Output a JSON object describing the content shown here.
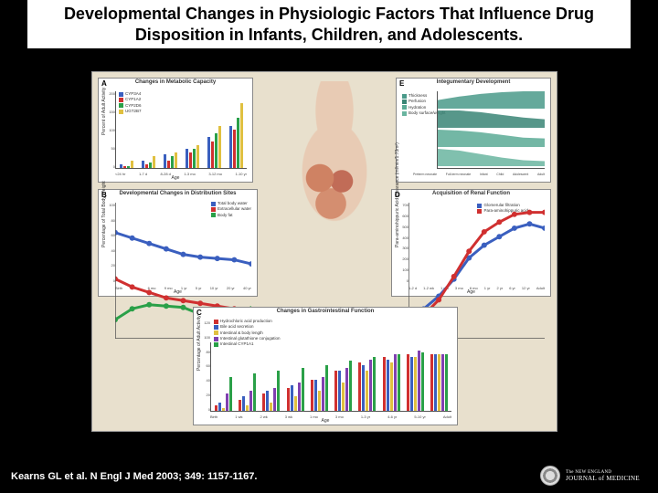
{
  "title": "Developmental Changes in Physiologic Factors That Influence Drug Disposition in Infants, Children, and Adolescents.",
  "citation": "Kearns GL et al. N Engl J Med 2003; 349: 1157-1167.",
  "journal": {
    "line1": "The NEW ENGLAND",
    "line2": "JOURNAL of MEDICINE"
  },
  "figure_bg": "#e8e0cd",
  "panelA": {
    "label": "A",
    "title": "Changes in Metabolic Capacity",
    "ylabel": "Percent of Adult Activity",
    "xlabel": "Age",
    "ylim": [
      0,
      200
    ],
    "ytick_step": 50,
    "xticks": [
      "<24 hr",
      "1-7 d",
      "8-28 d",
      "1-3 mo",
      "3-12 mo",
      "1-10 yr"
    ],
    "series": [
      {
        "name": "CYP3A4",
        "color": "#3a5fbf"
      },
      {
        "name": "CYP1A2",
        "color": "#d03030"
      },
      {
        "name": "CYP2D6",
        "color": "#2aa048"
      },
      {
        "name": "UGT2B7",
        "color": "#e0c040"
      }
    ],
    "data": [
      [
        10,
        5,
        5,
        20
      ],
      [
        20,
        10,
        15,
        30
      ],
      [
        35,
        20,
        30,
        40
      ],
      [
        50,
        40,
        50,
        60
      ],
      [
        80,
        70,
        90,
        110
      ],
      [
        110,
        100,
        130,
        170
      ]
    ]
  },
  "panelB": {
    "label": "B",
    "title": "Developmental Changes in Distribution Sites",
    "ylabel": "Percentage of Total Body Weight",
    "xlabel": "Age",
    "ylim": [
      0,
      100
    ],
    "ytick_step": 20,
    "xticks": [
      "Birth",
      "3 mo",
      "6 mo",
      "9 mo",
      "1 yr",
      "5 yr",
      "10 yr",
      "20 yr",
      "40 yr"
    ],
    "series": [
      {
        "name": "Total body water",
        "color": "#3a5fbf",
        "marker": "square"
      },
      {
        "name": "Extracellular water",
        "color": "#d03030",
        "marker": "circle"
      },
      {
        "name": "Body fat",
        "color": "#2aa048",
        "marker": "triangle"
      }
    ],
    "data": {
      "tbw": [
        78,
        74,
        70,
        66,
        62,
        60,
        59,
        58,
        55
      ],
      "ecw": [
        44,
        38,
        34,
        30,
        28,
        26,
        24,
        22,
        20
      ],
      "fat": [
        14,
        22,
        25,
        24,
        23,
        18,
        16,
        17,
        22
      ]
    }
  },
  "panelC": {
    "label": "C",
    "title": "Changes in Gastrointestinal Function",
    "ylabel": "Percentage of Adult Activity",
    "xlabel": "Age",
    "ylim": [
      0,
      120
    ],
    "ytick_step": 20,
    "xticks": [
      "Birth",
      "1 wk",
      "2 wk",
      "3 wk",
      "1 mo",
      "3 mo",
      "1-3 yr",
      "4-6 yr",
      "5-10 yr",
      "Adult"
    ],
    "series": [
      {
        "name": "Hydrochloric acid production",
        "color": "#d03030"
      },
      {
        "name": "Bile acid secretion",
        "color": "#3a5fbf"
      },
      {
        "name": "Intestinal & body length",
        "color": "#e0c040"
      },
      {
        "name": "Intestinal glutathione conjugation",
        "color": "#8040b0"
      },
      {
        "name": "Intestinal CYP1A1",
        "color": "#2aa048"
      }
    ],
    "data": [
      [
        10,
        15,
        5,
        30,
        60
      ],
      [
        20,
        25,
        10,
        35,
        65
      ],
      [
        30,
        35,
        15,
        40,
        70
      ],
      [
        40,
        45,
        25,
        50,
        75
      ],
      [
        55,
        55,
        35,
        60,
        80
      ],
      [
        70,
        70,
        50,
        75,
        88
      ],
      [
        85,
        80,
        70,
        90,
        95
      ],
      [
        95,
        90,
        85,
        100,
        100
      ],
      [
        100,
        95,
        95,
        105,
        102
      ],
      [
        100,
        100,
        100,
        100,
        100
      ]
    ]
  },
  "panelD": {
    "label": "D",
    "title": "Acquisition of Renal Function",
    "ylabel": "Para-aminohippuric Acid Clearance (ml/min/1.73m²)",
    "ylabel2": "Glomerular Filtration Rate (ml/min/1.73m²)",
    "xlabel": "Age",
    "ylim": [
      0,
      700
    ],
    "ytick_step": 100,
    "ylim2": [
      0,
      160
    ],
    "ytick_step2": 40,
    "xticks": [
      "1-2 d",
      "1-2 wk",
      "1 mo",
      "3 mo",
      "6 mo",
      "1 yr",
      "2 yr",
      "6 yr",
      "12 yr",
      "Adult"
    ],
    "series": [
      {
        "name": "Glomerular filtration",
        "color": "#3a5fbf"
      },
      {
        "name": "Para-aminohippuric acid",
        "color": "#d03030"
      }
    ],
    "data": {
      "gfr": [
        20,
        35,
        50,
        70,
        95,
        110,
        120,
        130,
        135,
        130
      ],
      "pah": [
        50,
        120,
        200,
        320,
        450,
        550,
        600,
        640,
        650,
        650
      ]
    }
  },
  "panelE": {
    "label": "E",
    "title": "Integumentary Development",
    "xlabel": "",
    "xticks": [
      "Preterm neonate",
      "Full-term neonate",
      "Infant",
      "Child",
      "Adolescent",
      "Adult"
    ],
    "layers": [
      {
        "name": "Thickness",
        "color": "#4a9a8a"
      },
      {
        "name": "Perfusion",
        "color": "#3a8575"
      },
      {
        "name": "Hydration",
        "color": "#5aaa95"
      },
      {
        "name": "Body surface/weight",
        "color": "#6ab5a0"
      }
    ],
    "data": [
      [
        0.5,
        0.7,
        0.85,
        0.95,
        1.0,
        1.0
      ],
      [
        1.0,
        1.0,
        0.9,
        0.75,
        0.6,
        0.5
      ],
      [
        1.0,
        0.95,
        0.85,
        0.7,
        0.55,
        0.5
      ],
      [
        1.0,
        0.9,
        0.7,
        0.5,
        0.35,
        0.3
      ]
    ]
  }
}
